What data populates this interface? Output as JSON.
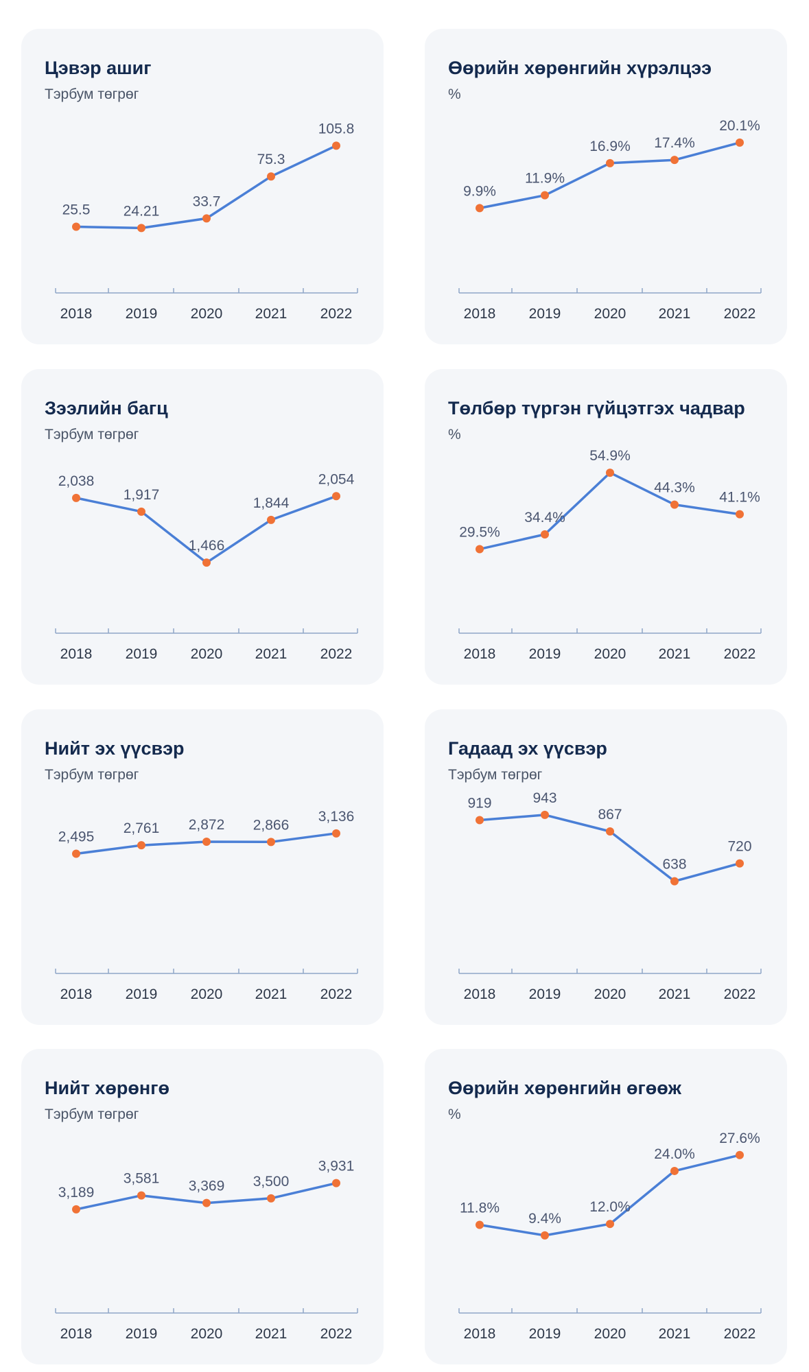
{
  "colors": {
    "line": "#4a7fd6",
    "point": "#f07236",
    "axis": "#8fa6c8",
    "label": "#4b5670",
    "title": "#142a4e"
  },
  "chart_data": [
    {
      "type": "line",
      "title": "Цэвэр ашиг",
      "subtitle": "Тэрбум төгрөг",
      "categories": [
        "2018",
        "2019",
        "2020",
        "2021",
        "2022"
      ],
      "values": [
        25.5,
        24.21,
        33.7,
        75.3,
        105.8
      ],
      "labels": [
        "25.5",
        "24.21",
        "33.7",
        "75.3",
        "105.8"
      ],
      "ylim": [
        0,
        140
      ]
    },
    {
      "type": "line",
      "title": "Өөрийн хөрөнгийн хүрэлцээ",
      "subtitle": "%",
      "categories": [
        "2018",
        "2019",
        "2020",
        "2021",
        "2022"
      ],
      "values": [
        9.9,
        11.9,
        16.9,
        17.4,
        20.1
      ],
      "labels": [
        "9.9%",
        "11.9%",
        "16.9%",
        "17.4%",
        "20.1%"
      ],
      "ylim": [
        3,
        25
      ]
    },
    {
      "type": "line",
      "title": "Зээлийн багц",
      "subtitle": "Тэрбум төгрөг",
      "categories": [
        "2018",
        "2019",
        "2020",
        "2021",
        "2022"
      ],
      "values": [
        2038,
        1917,
        1466,
        1844,
        2054
      ],
      "labels": [
        "2,038",
        "1,917",
        "1,466",
        "1,844",
        "2,054"
      ],
      "ylim": [
        1200,
        2450
      ]
    },
    {
      "type": "line",
      "title": "Төлбөр түргэн гүйцэтгэх чадвар",
      "subtitle": "%",
      "categories": [
        "2018",
        "2019",
        "2020",
        "2021",
        "2022"
      ],
      "values": [
        29.5,
        34.4,
        54.9,
        44.3,
        41.1
      ],
      "labels": [
        "29.5%",
        "34.4%",
        "54.9%",
        "44.3%",
        "41.1%"
      ],
      "ylim": [
        15,
        62
      ]
    },
    {
      "type": "line",
      "title": "Нийт эх үүсвэр",
      "subtitle": "Тэрбум төгрөг",
      "categories": [
        "2018",
        "2019",
        "2020",
        "2021",
        "2022"
      ],
      "values": [
        2495,
        2761,
        2872,
        2866,
        3136
      ],
      "labels": [
        "2,495",
        "2,761",
        "2,872",
        "2,866",
        "3,136"
      ],
      "ylim": [
        0,
        4450
      ]
    },
    {
      "type": "line",
      "title": "Гадаад эх үүсвэр",
      "subtitle": "Тэрбум төгрөг",
      "categories": [
        "2018",
        "2019",
        "2020",
        "2021",
        "2022"
      ],
      "values": [
        919,
        943,
        867,
        638,
        720
      ],
      "labels": [
        "919",
        "943",
        "867",
        "638",
        "720"
      ],
      "ylim": [
        400,
        1050
      ]
    },
    {
      "type": "line",
      "title": "Нийт хөрөнгө",
      "subtitle": "Тэрбум төгрөг",
      "categories": [
        "2018",
        "2019",
        "2020",
        "2021",
        "2022"
      ],
      "values": [
        3189,
        3581,
        3369,
        3500,
        3931
      ],
      "labels": [
        "3,189",
        "3,581",
        "3,369",
        "3,500",
        "3,931"
      ],
      "ylim": [
        1400,
        5400
      ]
    },
    {
      "type": "line",
      "title": "Өөрийн хөрөнгийн өгөөж",
      "subtitle": "%",
      "categories": [
        "2018",
        "2019",
        "2020",
        "2021",
        "2022"
      ],
      "values": [
        11.8,
        9.4,
        12.0,
        24.0,
        27.6
      ],
      "labels": [
        "11.8%",
        "9.4%",
        "12.0%",
        "24.0%",
        "27.6%"
      ],
      "ylim": [
        1,
        33
      ]
    }
  ]
}
